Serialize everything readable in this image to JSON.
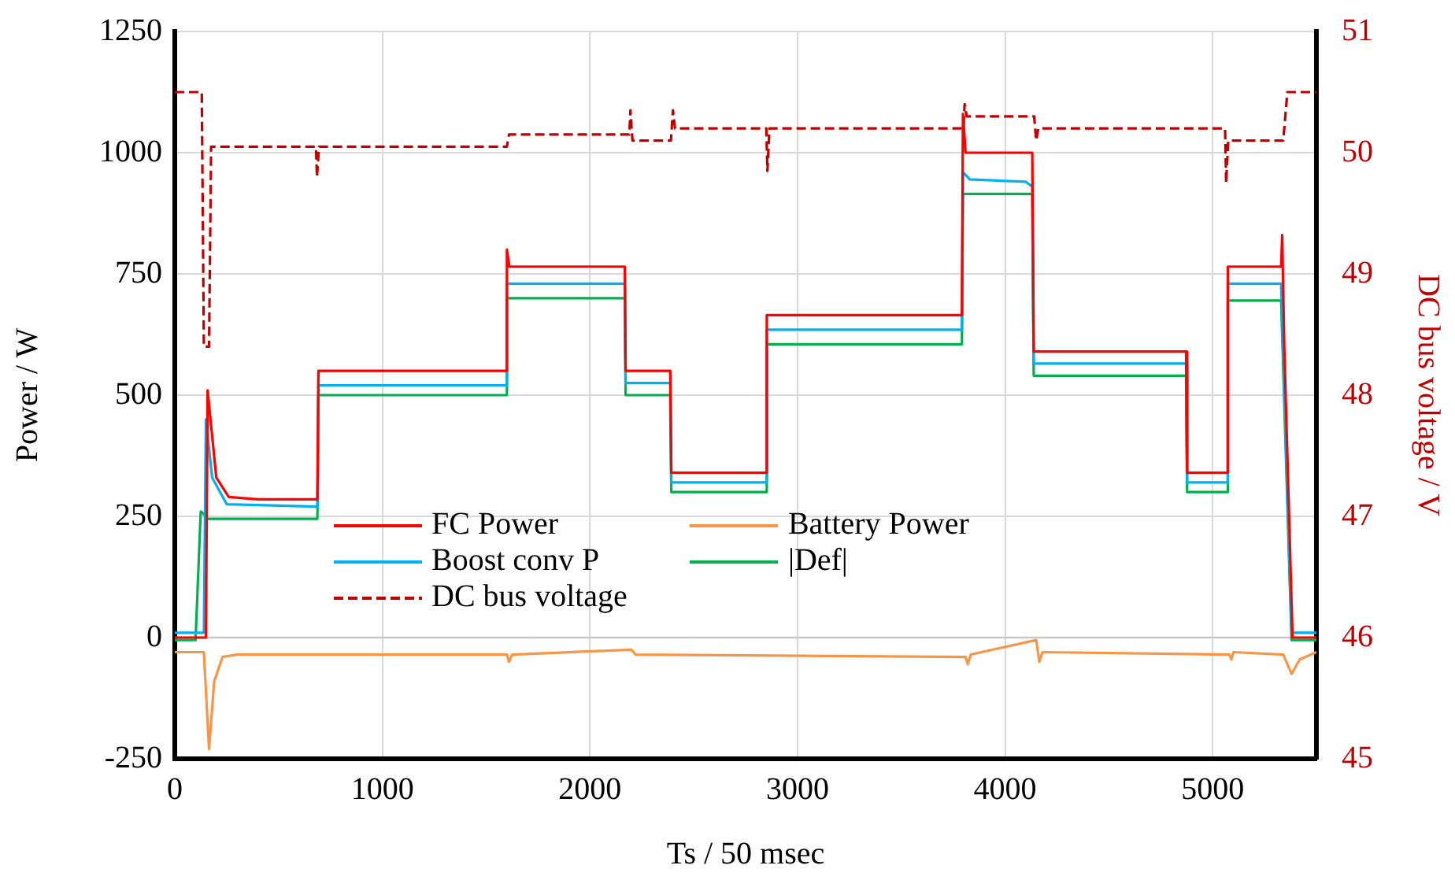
{
  "chart_data": {
    "type": "line",
    "xlabel": "Ts / 50 msec",
    "ylabel": "Power / W",
    "y2label": "DC bus voltage / V",
    "xlim": [
      0,
      5500
    ],
    "xticks": [
      0,
      1000,
      2000,
      3000,
      4000,
      5000
    ],
    "ylim": [
      -250,
      1250
    ],
    "yticks": [
      -250,
      0,
      250,
      500,
      750,
      1000,
      1250
    ],
    "y2lim": [
      45,
      51
    ],
    "y2ticks": [
      45,
      46,
      47,
      48,
      49,
      50,
      51
    ],
    "grid": true,
    "legend": "bottom",
    "marker": "none",
    "ref_lines": [
      {
        "axis": "y",
        "value": 0,
        "color": "#c8c8c8"
      }
    ],
    "series": [
      {
        "name": "FC Power",
        "color": "#ff0000",
        "x": [
          0,
          150,
          158,
          200,
          260,
          400,
          687,
          692,
          1594,
          1600,
          1612,
          2168,
          2172,
          2387,
          2392,
          2847,
          2852,
          3792,
          3797,
          3810,
          4131,
          4138,
          4872,
          4877,
          5068,
          5073,
          5330,
          5335,
          5345,
          5385,
          5500
        ],
        "values": [
          0,
          0,
          510,
          330,
          290,
          285,
          285,
          550,
          550,
          800,
          765,
          765,
          550,
          550,
          340,
          340,
          665,
          665,
          1080,
          1000,
          1000,
          590,
          590,
          340,
          340,
          765,
          765,
          830,
          600,
          0,
          0
        ]
      },
      {
        "name": "Battery Power",
        "color": "#f79646",
        "x": [
          0,
          140,
          165,
          190,
          230,
          300,
          1600,
          1610,
          1625,
          2200,
          2220,
          3810,
          3820,
          3835,
          4150,
          4165,
          4180,
          5080,
          5090,
          5100,
          5340,
          5380,
          5420,
          5500
        ],
        "values": [
          -30,
          -30,
          -230,
          -90,
          -40,
          -35,
          -35,
          -50,
          -35,
          -25,
          -35,
          -40,
          -55,
          -35,
          -5,
          -50,
          -30,
          -35,
          -45,
          -30,
          -35,
          -75,
          -45,
          -30
        ]
      },
      {
        "name": "Boost conv P",
        "color": "#00b0f0",
        "x": [
          0,
          140,
          150,
          180,
          250,
          687,
          692,
          1594,
          1600,
          2168,
          2172,
          2387,
          2392,
          2847,
          2852,
          3792,
          3797,
          3830,
          4100,
          4131,
          4138,
          4872,
          4877,
          5068,
          5073,
          5330,
          5380,
          5500
        ],
        "values": [
          10,
          10,
          450,
          330,
          275,
          270,
          520,
          520,
          730,
          730,
          525,
          525,
          320,
          320,
          635,
          635,
          960,
          945,
          940,
          930,
          565,
          565,
          320,
          320,
          730,
          730,
          10,
          10
        ]
      },
      {
        "name": "|Def|",
        "color": "#00b050",
        "x": [
          0,
          100,
          125,
          140,
          150,
          687,
          692,
          1594,
          1600,
          2168,
          2172,
          2387,
          2392,
          2847,
          2852,
          3792,
          3797,
          4131,
          4138,
          4872,
          4877,
          5068,
          5073,
          5330,
          5380,
          5500
        ],
        "values": [
          -5,
          -5,
          260,
          255,
          245,
          245,
          500,
          500,
          700,
          700,
          500,
          500,
          300,
          300,
          605,
          605,
          915,
          915,
          540,
          540,
          300,
          300,
          695,
          695,
          -5,
          -5
        ]
      },
      {
        "name": "DC bus voltage",
        "color": "#c00000",
        "axis": "y2",
        "line_style": "dashed",
        "x": [
          0,
          130,
          140,
          165,
          175,
          680,
          685,
          695,
          1600,
          1610,
          2190,
          2195,
          2205,
          2390,
          2400,
          2410,
          2850,
          2855,
          2865,
          3800,
          3805,
          3815,
          4140,
          4150,
          4160,
          5060,
          5065,
          5075,
          5340,
          5360,
          5500
        ],
        "values": [
          50.5,
          50.5,
          48.4,
          48.4,
          50.05,
          50.05,
          49.8,
          50.05,
          50.05,
          50.15,
          50.15,
          50.35,
          50.1,
          50.1,
          50.35,
          50.2,
          50.2,
          49.85,
          50.2,
          50.2,
          50.4,
          50.3,
          50.3,
          50.1,
          50.2,
          50.2,
          49.75,
          50.1,
          50.1,
          50.5,
          50.5
        ]
      }
    ]
  }
}
